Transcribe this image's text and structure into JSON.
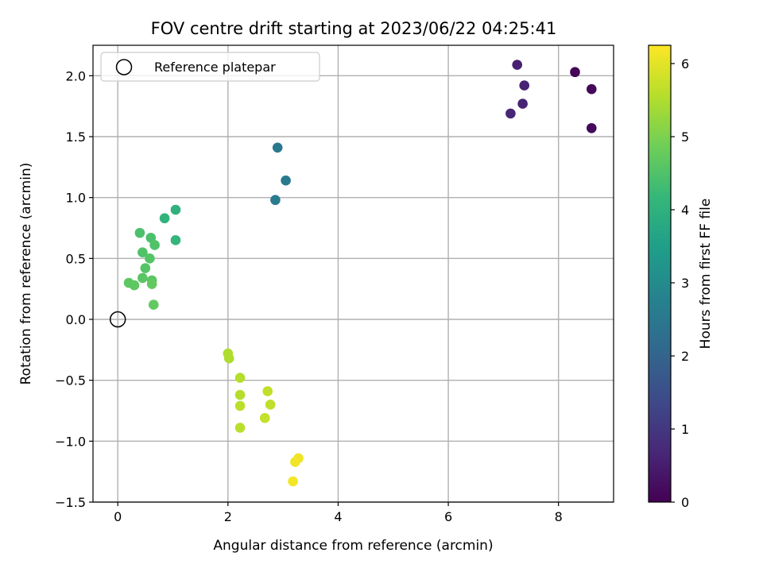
{
  "chart_data": {
    "type": "scatter",
    "title": "FOV centre drift starting at 2023/06/22 04:25:41",
    "xlabel": "Angular distance from reference (arcmin)",
    "ylabel": "Rotation from reference (arcmin)",
    "xlim": [
      -0.45,
      9.0
    ],
    "ylim": [
      -1.5,
      2.25
    ],
    "xticks": [
      0,
      2,
      4,
      6,
      8
    ],
    "xtick_labels": [
      "0",
      "2",
      "4",
      "6",
      "8"
    ],
    "yticks": [
      -1.5,
      -1.0,
      -0.5,
      0.0,
      0.5,
      1.0,
      1.5,
      2.0
    ],
    "ytick_labels": [
      "−1.5",
      "−1.0",
      "−0.5",
      "0.0",
      "0.5",
      "1.0",
      "1.5",
      "2.0"
    ],
    "grid": true,
    "legend": {
      "position": "upper-left",
      "entries": [
        {
          "label": "Reference platepar",
          "marker": "open-circle"
        }
      ]
    },
    "colorbar": {
      "label": "Hours from first FF file",
      "colormap": "viridis",
      "range": [
        0,
        6.25
      ],
      "ticks": [
        0,
        1,
        2,
        3,
        4,
        5,
        6
      ],
      "tick_labels": [
        "0",
        "1",
        "2",
        "3",
        "4",
        "5",
        "6"
      ]
    },
    "reference_point": {
      "x": 0,
      "y": 0
    },
    "points": [
      {
        "x": 8.3,
        "y": 2.03,
        "c": 0.05
      },
      {
        "x": 8.6,
        "y": 1.89,
        "c": 0.1
      },
      {
        "x": 8.6,
        "y": 1.57,
        "c": 0.15
      },
      {
        "x": 7.25,
        "y": 2.09,
        "c": 0.55
      },
      {
        "x": 7.38,
        "y": 1.92,
        "c": 0.6
      },
      {
        "x": 7.35,
        "y": 1.77,
        "c": 0.62
      },
      {
        "x": 7.13,
        "y": 1.69,
        "c": 0.65
      },
      {
        "x": 2.9,
        "y": 1.41,
        "c": 2.5
      },
      {
        "x": 3.05,
        "y": 1.14,
        "c": 2.55
      },
      {
        "x": 2.86,
        "y": 0.98,
        "c": 2.6
      },
      {
        "x": 1.05,
        "y": 0.9,
        "c": 4.0
      },
      {
        "x": 0.85,
        "y": 0.83,
        "c": 4.05
      },
      {
        "x": 1.05,
        "y": 0.65,
        "c": 4.1
      },
      {
        "x": 0.4,
        "y": 0.71,
        "c": 4.45
      },
      {
        "x": 0.6,
        "y": 0.67,
        "c": 4.45
      },
      {
        "x": 0.67,
        "y": 0.61,
        "c": 4.5
      },
      {
        "x": 0.45,
        "y": 0.55,
        "c": 4.5
      },
      {
        "x": 0.58,
        "y": 0.5,
        "c": 4.55
      },
      {
        "x": 0.5,
        "y": 0.42,
        "c": 4.55
      },
      {
        "x": 0.45,
        "y": 0.34,
        "c": 4.6
      },
      {
        "x": 0.62,
        "y": 0.32,
        "c": 4.6
      },
      {
        "x": 0.2,
        "y": 0.3,
        "c": 4.65
      },
      {
        "x": 0.3,
        "y": 0.28,
        "c": 4.65
      },
      {
        "x": 0.62,
        "y": 0.29,
        "c": 4.7
      },
      {
        "x": 0.65,
        "y": 0.12,
        "c": 4.7
      },
      {
        "x": 2.0,
        "y": -0.28,
        "c": 5.5
      },
      {
        "x": 2.02,
        "y": -0.32,
        "c": 5.5
      },
      {
        "x": 2.22,
        "y": -0.48,
        "c": 5.55
      },
      {
        "x": 2.22,
        "y": -0.62,
        "c": 5.55
      },
      {
        "x": 2.22,
        "y": -0.71,
        "c": 5.6
      },
      {
        "x": 2.22,
        "y": -0.89,
        "c": 5.6
      },
      {
        "x": 2.72,
        "y": -0.59,
        "c": 5.65
      },
      {
        "x": 2.77,
        "y": -0.7,
        "c": 5.65
      },
      {
        "x": 2.67,
        "y": -0.81,
        "c": 5.7
      },
      {
        "x": 3.28,
        "y": -1.14,
        "c": 6.1
      },
      {
        "x": 3.22,
        "y": -1.17,
        "c": 6.12
      },
      {
        "x": 3.18,
        "y": -1.33,
        "c": 6.15
      }
    ]
  }
}
